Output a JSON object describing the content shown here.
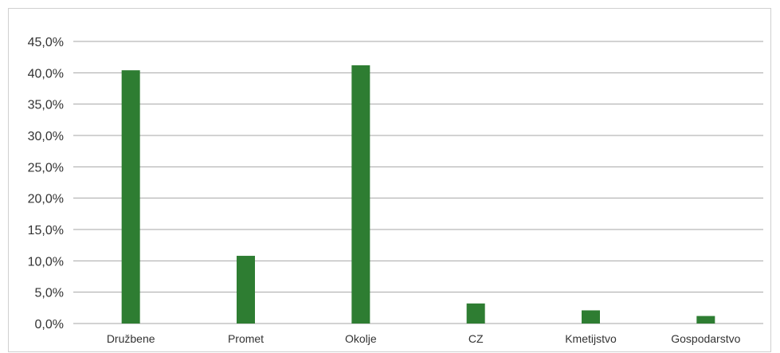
{
  "chart_data": {
    "type": "bar",
    "title": "",
    "xlabel": "",
    "ylabel": "",
    "categories": [
      "Družbene",
      "Promet",
      "Okolje",
      "CZ",
      "Kmetijstvo",
      "Gospodarstvo"
    ],
    "values": [
      40.4,
      10.8,
      41.2,
      3.2,
      2.1,
      1.2
    ],
    "ylim": [
      0,
      45
    ],
    "y_ticks": [
      0,
      5,
      10,
      15,
      20,
      25,
      30,
      35,
      40,
      45
    ],
    "y_tick_labels": [
      "0,0%",
      "5,0%",
      "10,0%",
      "15,0%",
      "20,0%",
      "25,0%",
      "30,0%",
      "35,0%",
      "40,0%",
      "45,0%"
    ],
    "unit": "%",
    "grid": true,
    "legend": "none",
    "bar_color": "#2e7d32",
    "grid_color": "#a6a6a6"
  }
}
